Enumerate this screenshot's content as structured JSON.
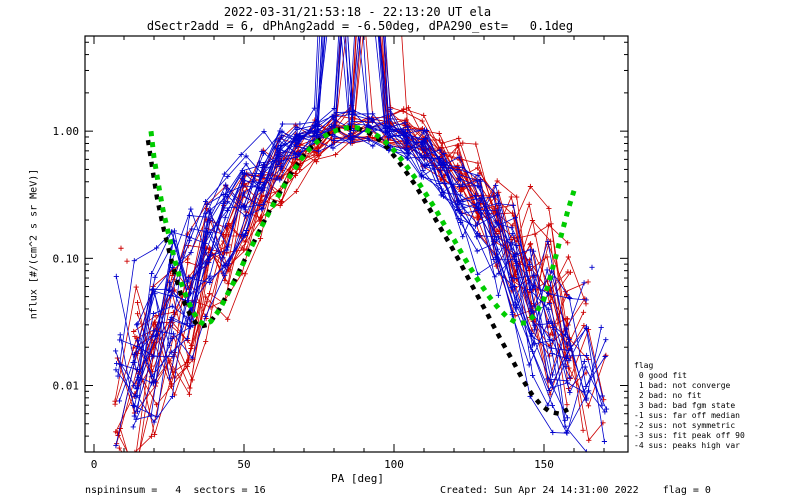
{
  "header": {
    "title": "2022-03-31/21:53:18 - 22:13:20 UT ela",
    "subtitle": "dSectr2add = 6, dPhAng2add = -6.50deg, dPA290_est=   0.1deg"
  },
  "footer": {
    "left": "nspininsum =   4  sectors = 16",
    "right": "Created: Sun Apr 24 14:31:00 2022    flag = 0"
  },
  "legend": {
    "lines": [
      "flag",
      " 0 good fit",
      " 1 bad: not converge",
      " 2 bad: no fit",
      " 3 bad: bad fgm state",
      "-1 sus: far off median",
      "-2 sus: not symmetric",
      "-3 sus: fit peak off 90",
      "-4 sus: peaks high var"
    ]
  },
  "colors": {
    "red": "#cc0000",
    "blue": "#0000cc",
    "green": "#00cc00",
    "black": "#000000",
    "background": "#ffffff"
  },
  "chart_data": {
    "type": "line",
    "title": "2022-03-31/21:53:18 - 22:13:20 UT ela",
    "subtitle": "dSectr2add = 6, dPhAng2add = -6.50deg, dPA290_est=   0.1deg",
    "xlabel": "PA [deg]",
    "ylabel": "nflux [#/(cm^2 s sr MeV)]",
    "yscale": "log",
    "grid": false,
    "xlim": [
      -3,
      178
    ],
    "ylim": [
      0.003,
      5.6
    ],
    "xticks": [
      0,
      50,
      100,
      150
    ],
    "xtick_labels": [
      "0",
      "50",
      "100",
      "150"
    ],
    "x_minor_step": 10,
    "yticks": [
      0.01,
      0.1,
      1.0
    ],
    "ytick_labels": [
      "0.01",
      "0.10",
      "1.00"
    ],
    "fit_curves": [
      {
        "name": "median-fit-black-dashed",
        "color": "#000000",
        "width": 4.5,
        "dash": "5 6",
        "points": [
          [
            18,
            0.85
          ],
          [
            19.5,
            0.5
          ],
          [
            21,
            0.3
          ],
          [
            23,
            0.18
          ],
          [
            25,
            0.115
          ],
          [
            27,
            0.075
          ],
          [
            29,
            0.052
          ],
          [
            31,
            0.04
          ],
          [
            33,
            0.033
          ],
          [
            35,
            0.029
          ],
          [
            38,
            0.03
          ],
          [
            41,
            0.037
          ],
          [
            44,
            0.05
          ],
          [
            47,
            0.068
          ],
          [
            50,
            0.095
          ],
          [
            53,
            0.13
          ],
          [
            56,
            0.18
          ],
          [
            59,
            0.25
          ],
          [
            62,
            0.33
          ],
          [
            65,
            0.44
          ],
          [
            68,
            0.56
          ],
          [
            71,
            0.69
          ],
          [
            74,
            0.81
          ],
          [
            77,
            0.92
          ],
          [
            80,
            1.0
          ],
          [
            83,
            1.05
          ],
          [
            86,
            1.06
          ],
          [
            89,
            1.03
          ],
          [
            92,
            0.96
          ],
          [
            95,
            0.86
          ],
          [
            98,
            0.73
          ],
          [
            101,
            0.6
          ],
          [
            104,
            0.48
          ],
          [
            107,
            0.38
          ],
          [
            110,
            0.29
          ],
          [
            113,
            0.22
          ],
          [
            116,
            0.165
          ],
          [
            119,
            0.125
          ],
          [
            122,
            0.093
          ],
          [
            125,
            0.068
          ],
          [
            128,
            0.05
          ],
          [
            131,
            0.037
          ],
          [
            134,
            0.027
          ],
          [
            137,
            0.02
          ],
          [
            140,
            0.015
          ],
          [
            143,
            0.011
          ],
          [
            146,
            0.0085
          ],
          [
            149,
            0.007
          ],
          [
            152,
            0.0062
          ],
          [
            155,
            0.006
          ],
          [
            158,
            0.0065
          ]
        ]
      },
      {
        "name": "sine-fit-green-dashed",
        "color": "#00cc00",
        "width": 5,
        "dash": "5 6",
        "points": [
          [
            19,
            1.0
          ],
          [
            20,
            0.62
          ],
          [
            21.5,
            0.38
          ],
          [
            23,
            0.24
          ],
          [
            25,
            0.15
          ],
          [
            27,
            0.095
          ],
          [
            29,
            0.065
          ],
          [
            31,
            0.048
          ],
          [
            33,
            0.038
          ],
          [
            35,
            0.032
          ],
          [
            37,
            0.03
          ],
          [
            39,
            0.032
          ],
          [
            42,
            0.04
          ],
          [
            45,
            0.055
          ],
          [
            48,
            0.075
          ],
          [
            51,
            0.105
          ],
          [
            54,
            0.145
          ],
          [
            57,
            0.2
          ],
          [
            60,
            0.27
          ],
          [
            63,
            0.36
          ],
          [
            66,
            0.47
          ],
          [
            69,
            0.6
          ],
          [
            72,
            0.73
          ],
          [
            75,
            0.85
          ],
          [
            78,
            0.95
          ],
          [
            81,
            1.02
          ],
          [
            84,
            1.06
          ],
          [
            87,
            1.07
          ],
          [
            90,
            1.04
          ],
          [
            93,
            0.97
          ],
          [
            96,
            0.87
          ],
          [
            99,
            0.75
          ],
          [
            102,
            0.62
          ],
          [
            105,
            0.5
          ],
          [
            108,
            0.4
          ],
          [
            111,
            0.31
          ],
          [
            114,
            0.24
          ],
          [
            117,
            0.18
          ],
          [
            120,
            0.14
          ],
          [
            123,
            0.105
          ],
          [
            126,
            0.08
          ],
          [
            129,
            0.062
          ],
          [
            132,
            0.049
          ],
          [
            135,
            0.04
          ],
          [
            138,
            0.034
          ],
          [
            141,
            0.031
          ],
          [
            144,
            0.031
          ],
          [
            147,
            0.036
          ],
          [
            150,
            0.048
          ],
          [
            152,
            0.07
          ],
          [
            154,
            0.105
          ],
          [
            156,
            0.16
          ],
          [
            158,
            0.24
          ],
          [
            160,
            0.34
          ]
        ]
      }
    ],
    "spin_curves": {
      "pa_start": 8,
      "pa_end": 170,
      "pa_step": 6,
      "series_format": [
        "color",
        "seed",
        "amp",
        "center",
        "width",
        "floor",
        "spike"
      ],
      "series": [
        [
          "r",
          11,
          1.3,
          92,
          22,
          0.006,
          1
        ],
        [
          "r",
          12,
          0.95,
          90,
          24,
          0.01,
          0
        ],
        [
          "r",
          13,
          1.15,
          93,
          21,
          0.004,
          1
        ],
        [
          "r",
          14,
          1.4,
          91,
          23,
          0.008,
          1
        ],
        [
          "r",
          15,
          0.85,
          89,
          26,
          0.015,
          0
        ],
        [
          "r",
          16,
          1.1,
          94,
          22,
          0.005,
          0
        ],
        [
          "r",
          17,
          1.25,
          92,
          20,
          0.007,
          1
        ],
        [
          "r",
          18,
          1.0,
          90,
          25,
          0.012,
          0
        ],
        [
          "r",
          19,
          1.5,
          93,
          22,
          0.005,
          1
        ],
        [
          "r",
          20,
          0.9,
          91,
          24,
          0.009,
          0
        ],
        [
          "r",
          21,
          1.2,
          95,
          21,
          0.006,
          1
        ],
        [
          "r",
          22,
          1.05,
          92,
          23,
          0.018,
          0
        ],
        [
          "r",
          23,
          1.35,
          90,
          22,
          0.004,
          1
        ],
        [
          "r",
          24,
          0.8,
          93,
          25,
          0.01,
          0
        ],
        [
          "r",
          25,
          1.1,
          91,
          20,
          0.007,
          0
        ],
        [
          "r",
          26,
          1.45,
          94,
          23,
          0.005,
          1
        ],
        [
          "r",
          27,
          0.95,
          89,
          24,
          0.013,
          0
        ],
        [
          "r",
          28,
          1.2,
          92,
          21,
          0.006,
          0
        ],
        [
          "r",
          29,
          1.0,
          95,
          26,
          0.008,
          0
        ],
        [
          "r",
          30,
          1.3,
          91,
          22,
          0.004,
          1
        ],
        [
          "b",
          41,
          1.25,
          87,
          22,
          0.005,
          1
        ],
        [
          "b",
          42,
          1.0,
          85,
          24,
          0.008,
          1
        ],
        [
          "b",
          43,
          1.4,
          88,
          21,
          0.004,
          1
        ],
        [
          "b",
          44,
          0.9,
          86,
          25,
          0.012,
          0
        ],
        [
          "b",
          45,
          1.15,
          89,
          22,
          0.006,
          1
        ],
        [
          "b",
          46,
          1.3,
          84,
          23,
          0.005,
          1
        ],
        [
          "b",
          47,
          0.95,
          87,
          26,
          0.01,
          0
        ],
        [
          "b",
          48,
          1.2,
          88,
          20,
          0.004,
          1
        ],
        [
          "b",
          49,
          1.05,
          85,
          23,
          0.015,
          1
        ],
        [
          "b",
          50,
          1.45,
          86,
          22,
          0.005,
          1
        ],
        [
          "b",
          51,
          0.85,
          89,
          24,
          0.009,
          0
        ],
        [
          "b",
          52,
          1.1,
          87,
          21,
          0.006,
          1
        ],
        [
          "b",
          53,
          1.35,
          84,
          23,
          0.004,
          1
        ],
        [
          "b",
          54,
          1.0,
          88,
          25,
          0.011,
          0
        ],
        [
          "b",
          55,
          1.2,
          86,
          22,
          0.007,
          1
        ],
        [
          "b",
          56,
          0.9,
          85,
          24,
          0.013,
          0
        ],
        [
          "b",
          57,
          1.5,
          87,
          21,
          0.004,
          1
        ],
        [
          "b",
          58,
          1.05,
          89,
          23,
          0.008,
          1
        ],
        [
          "b",
          59,
          1.25,
          86,
          20,
          0.005,
          1
        ],
        [
          "b",
          60,
          0.95,
          88,
          24,
          0.01,
          0
        ],
        [
          "b",
          61,
          1.15,
          85,
          22,
          0.006,
          1
        ],
        [
          "b",
          62,
          1.3,
          87,
          23,
          0.004,
          1
        ]
      ]
    },
    "extra_points": [
      [
        "b",
        166,
        0.085
      ],
      [
        "r",
        9,
        0.12
      ],
      [
        "r",
        11,
        0.095
      ]
    ]
  }
}
